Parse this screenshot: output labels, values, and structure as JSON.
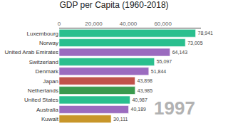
{
  "chart_data": {
    "type": "bar",
    "orientation": "horizontal",
    "title": "GDP per Capita (1960-2018)",
    "categories": [
      "Luxembourg",
      "Norway",
      "United Arab Emirates",
      "Switzerland",
      "Denmark",
      "Japan",
      "Netherlands",
      "United States",
      "Australia",
      "Kuwait"
    ],
    "values": [
      78941,
      73005,
      64143,
      55097,
      51844,
      43898,
      43985,
      40987,
      40189,
      30111
    ],
    "value_labels": [
      "78,941",
      "73,005",
      "64,143",
      "55,097",
      "51,844",
      "43,898",
      "43,985",
      "40,987",
      "40,189",
      "30,111"
    ],
    "colors": [
      "#2abf8e",
      "#2abf8e",
      "#9b6bbf",
      "#2abf8e",
      "#9b6bbf",
      "#c0524a",
      "#3a9a4e",
      "#2abf8e",
      "#9b6bbf",
      "#c8962a"
    ],
    "xlim": [
      0,
      82000
    ],
    "xticks": [
      0,
      {
        "value": 20000,
        "label": "20,000"
      },
      {
        "value": 40000,
        "label": "40,000"
      },
      {
        "value": 60000,
        "label": "60,000"
      }
    ],
    "data_labels": true,
    "grid": false,
    "annotations": [
      {
        "text": "1997",
        "color": "#aaaaaa"
      }
    ]
  }
}
